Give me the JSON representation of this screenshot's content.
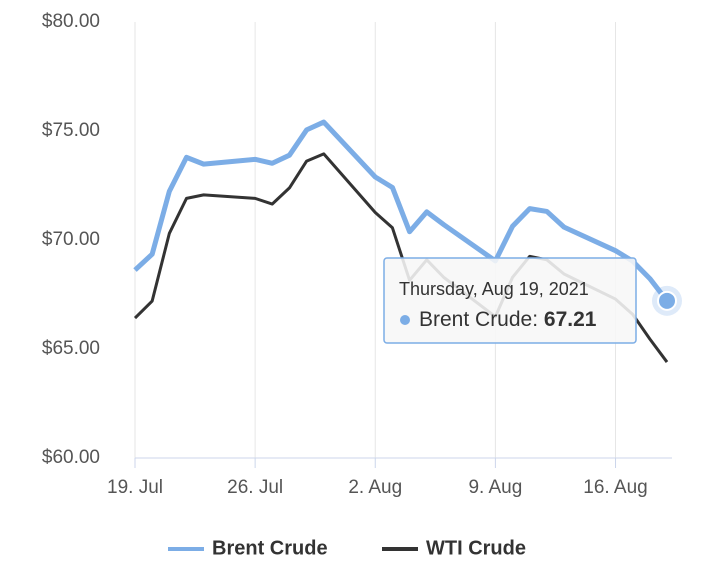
{
  "chart_data": {
    "type": "line",
    "x": [
      "2021-07-19",
      "2021-07-20",
      "2021-07-21",
      "2021-07-22",
      "2021-07-23",
      "2021-07-26",
      "2021-07-27",
      "2021-07-28",
      "2021-07-29",
      "2021-07-30",
      "2021-08-02",
      "2021-08-03",
      "2021-08-04",
      "2021-08-05",
      "2021-08-06",
      "2021-08-09",
      "2021-08-10",
      "2021-08-11",
      "2021-08-12",
      "2021-08-13",
      "2021-08-16",
      "2021-08-17",
      "2021-08-18",
      "2021-08-19"
    ],
    "series": [
      {
        "name": "Brent Crude",
        "color": "#7cade6",
        "values": [
          68.62,
          69.35,
          72.23,
          73.79,
          73.48,
          73.7,
          73.52,
          73.89,
          75.05,
          75.41,
          72.89,
          72.41,
          70.38,
          71.29,
          70.7,
          69.04,
          70.63,
          71.44,
          71.31,
          70.59,
          69.51,
          69.03,
          68.23,
          67.21
        ]
      },
      {
        "name": "WTI Crude",
        "color": "#333333",
        "values": [
          66.42,
          67.2,
          70.3,
          71.91,
          72.07,
          71.91,
          71.65,
          72.39,
          73.62,
          73.95,
          71.26,
          70.56,
          68.15,
          69.09,
          68.28,
          66.48,
          68.29,
          69.25,
          69.09,
          68.44,
          67.29,
          66.59,
          65.46,
          64.4
        ]
      }
    ],
    "xlim": [
      "2021-07-19",
      "2021-08-19"
    ],
    "xticks": [
      {
        "value": "2021-07-19",
        "label": "19. Jul"
      },
      {
        "value": "2021-07-26",
        "label": "26. Jul"
      },
      {
        "value": "2021-08-02",
        "label": "2. Aug"
      },
      {
        "value": "2021-08-09",
        "label": "9. Aug"
      },
      {
        "value": "2021-08-16",
        "label": "16. Aug"
      }
    ],
    "ylim": [
      60,
      80
    ],
    "yticks": [
      {
        "value": 60,
        "label": "$60.00"
      },
      {
        "value": 65,
        "label": "$65.00"
      },
      {
        "value": 70,
        "label": "$70.00"
      },
      {
        "value": 75,
        "label": "$75.00"
      },
      {
        "value": 80,
        "label": "$80.00"
      }
    ],
    "grid": true,
    "tooltip": {
      "date": "Thursday, Aug 19, 2021",
      "label": "Brent Crude:"
    }
  }
}
